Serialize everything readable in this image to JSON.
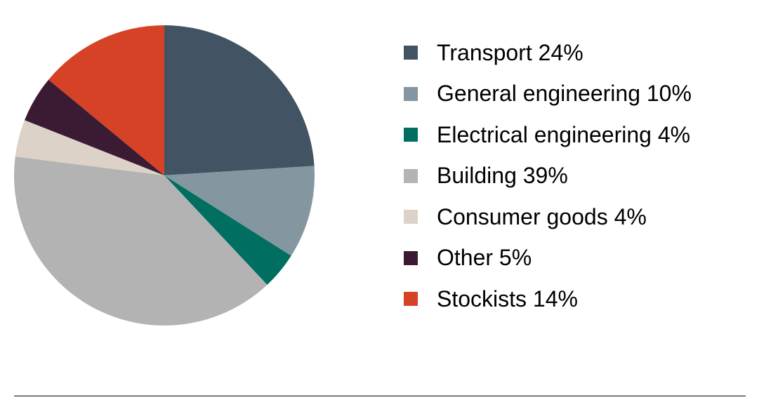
{
  "chart_data": {
    "type": "pie",
    "start_angle_deg": 0,
    "direction": "clockwise",
    "slices": [
      {
        "label": "Transport 24%",
        "value": 24,
        "color": "#425363"
      },
      {
        "label": "General engineering 10%",
        "value": 10,
        "color": "#8497a1"
      },
      {
        "label": "Electrical engineering 4%",
        "value": 4,
        "color": "#006f62"
      },
      {
        "label": "Building 39%",
        "value": 39,
        "color": "#b3b3b3"
      },
      {
        "label": "Consumer goods 4%",
        "value": 4,
        "color": "#dcd2c7"
      },
      {
        "label": "Other 5%",
        "value": 5,
        "color": "#3b1b33"
      },
      {
        "label": "Stockists 14%",
        "value": 14,
        "color": "#d54226"
      }
    ],
    "legend_position": "right"
  }
}
